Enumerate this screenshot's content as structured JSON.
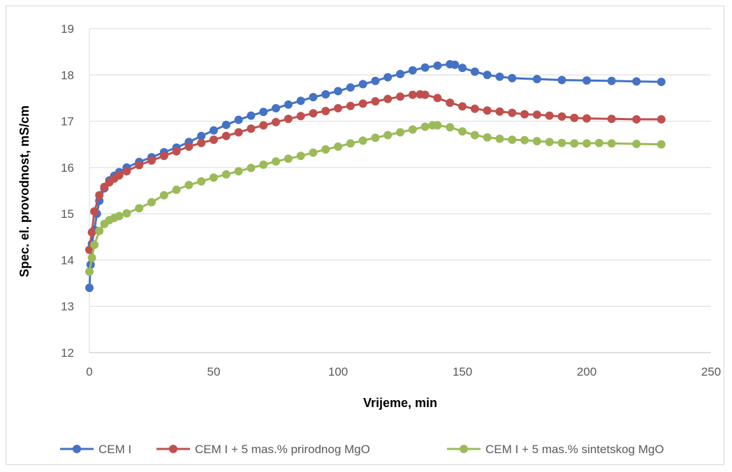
{
  "chart_data": {
    "type": "line",
    "title": "",
    "xlabel": "Vrijeme, min",
    "ylabel": "Spec. el. provodnost, mS/cm",
    "xlim": [
      0,
      250
    ],
    "ylim": [
      12,
      19
    ],
    "xticks": [
      0,
      50,
      100,
      150,
      200,
      250
    ],
    "yticks": [
      12,
      13,
      14,
      15,
      16,
      17,
      18,
      19
    ],
    "grid": "horizontal",
    "legend_position": "bottom",
    "series": [
      {
        "name": "CEM I",
        "color": "#4472C4",
        "points": [
          [
            0,
            13.4
          ],
          [
            0.5,
            13.9
          ],
          [
            1,
            14.35
          ],
          [
            2,
            14.65
          ],
          [
            3,
            15.0
          ],
          [
            4,
            15.28
          ],
          [
            6,
            15.55
          ],
          [
            8,
            15.72
          ],
          [
            10,
            15.82
          ],
          [
            12,
            15.9
          ],
          [
            15,
            16.0
          ],
          [
            20,
            16.12
          ],
          [
            25,
            16.22
          ],
          [
            30,
            16.33
          ],
          [
            35,
            16.43
          ],
          [
            40,
            16.55
          ],
          [
            45,
            16.68
          ],
          [
            50,
            16.8
          ],
          [
            55,
            16.92
          ],
          [
            60,
            17.03
          ],
          [
            65,
            17.12
          ],
          [
            70,
            17.2
          ],
          [
            75,
            17.28
          ],
          [
            80,
            17.36
          ],
          [
            85,
            17.44
          ],
          [
            90,
            17.52
          ],
          [
            95,
            17.58
          ],
          [
            100,
            17.65
          ],
          [
            105,
            17.73
          ],
          [
            110,
            17.8
          ],
          [
            115,
            17.87
          ],
          [
            120,
            17.95
          ],
          [
            125,
            18.02
          ],
          [
            130,
            18.1
          ],
          [
            135,
            18.16
          ],
          [
            140,
            18.2
          ],
          [
            145,
            18.23
          ],
          [
            147,
            18.22
          ],
          [
            150,
            18.15
          ],
          [
            155,
            18.07
          ],
          [
            160,
            18.0
          ],
          [
            165,
            17.96
          ],
          [
            170,
            17.93
          ],
          [
            180,
            17.91
          ],
          [
            190,
            17.89
          ],
          [
            200,
            17.88
          ],
          [
            210,
            17.87
          ],
          [
            220,
            17.86
          ],
          [
            230,
            17.85
          ]
        ]
      },
      {
        "name": "CEM I + 5 mas.% prirodnog MgO",
        "color": "#C0504D",
        "points": [
          [
            0,
            14.22
          ],
          [
            1,
            14.6
          ],
          [
            2,
            15.05
          ],
          [
            4,
            15.4
          ],
          [
            6,
            15.58
          ],
          [
            8,
            15.68
          ],
          [
            10,
            15.76
          ],
          [
            12,
            15.83
          ],
          [
            15,
            15.92
          ],
          [
            20,
            16.05
          ],
          [
            25,
            16.15
          ],
          [
            30,
            16.25
          ],
          [
            35,
            16.35
          ],
          [
            40,
            16.45
          ],
          [
            45,
            16.53
          ],
          [
            50,
            16.6
          ],
          [
            55,
            16.68
          ],
          [
            60,
            16.76
          ],
          [
            65,
            16.84
          ],
          [
            70,
            16.91
          ],
          [
            75,
            16.98
          ],
          [
            80,
            17.05
          ],
          [
            85,
            17.11
          ],
          [
            90,
            17.17
          ],
          [
            95,
            17.22
          ],
          [
            100,
            17.28
          ],
          [
            105,
            17.33
          ],
          [
            110,
            17.38
          ],
          [
            115,
            17.43
          ],
          [
            120,
            17.48
          ],
          [
            125,
            17.53
          ],
          [
            130,
            17.57
          ],
          [
            133,
            17.58
          ],
          [
            135,
            17.57
          ],
          [
            140,
            17.5
          ],
          [
            145,
            17.4
          ],
          [
            150,
            17.32
          ],
          [
            155,
            17.27
          ],
          [
            160,
            17.23
          ],
          [
            165,
            17.21
          ],
          [
            170,
            17.18
          ],
          [
            175,
            17.15
          ],
          [
            180,
            17.14
          ],
          [
            185,
            17.12
          ],
          [
            190,
            17.1
          ],
          [
            195,
            17.07
          ],
          [
            200,
            17.06
          ],
          [
            210,
            17.05
          ],
          [
            220,
            17.04
          ],
          [
            230,
            17.04
          ]
        ]
      },
      {
        "name": "CEM I + 5 mas.% sintetskog MgO",
        "color": "#9BBB59",
        "points": [
          [
            0,
            13.75
          ],
          [
            1,
            14.05
          ],
          [
            2,
            14.33
          ],
          [
            4,
            14.63
          ],
          [
            6,
            14.78
          ],
          [
            8,
            14.86
          ],
          [
            10,
            14.91
          ],
          [
            12,
            14.95
          ],
          [
            15,
            15.01
          ],
          [
            20,
            15.12
          ],
          [
            25,
            15.25
          ],
          [
            30,
            15.4
          ],
          [
            35,
            15.52
          ],
          [
            40,
            15.62
          ],
          [
            45,
            15.7
          ],
          [
            50,
            15.78
          ],
          [
            55,
            15.85
          ],
          [
            60,
            15.92
          ],
          [
            65,
            15.99
          ],
          [
            70,
            16.06
          ],
          [
            75,
            16.13
          ],
          [
            80,
            16.19
          ],
          [
            85,
            16.25
          ],
          [
            90,
            16.32
          ],
          [
            95,
            16.39
          ],
          [
            100,
            16.45
          ],
          [
            105,
            16.52
          ],
          [
            110,
            16.58
          ],
          [
            115,
            16.64
          ],
          [
            120,
            16.7
          ],
          [
            125,
            16.76
          ],
          [
            130,
            16.82
          ],
          [
            135,
            16.88
          ],
          [
            138,
            16.91
          ],
          [
            140,
            16.91
          ],
          [
            145,
            16.87
          ],
          [
            150,
            16.78
          ],
          [
            155,
            16.7
          ],
          [
            160,
            16.65
          ],
          [
            165,
            16.62
          ],
          [
            170,
            16.6
          ],
          [
            175,
            16.59
          ],
          [
            180,
            16.57
          ],
          [
            185,
            16.55
          ],
          [
            190,
            16.53
          ],
          [
            195,
            16.52
          ],
          [
            200,
            16.52
          ],
          [
            205,
            16.53
          ],
          [
            210,
            16.52
          ],
          [
            220,
            16.51
          ],
          [
            230,
            16.5
          ]
        ]
      }
    ]
  }
}
